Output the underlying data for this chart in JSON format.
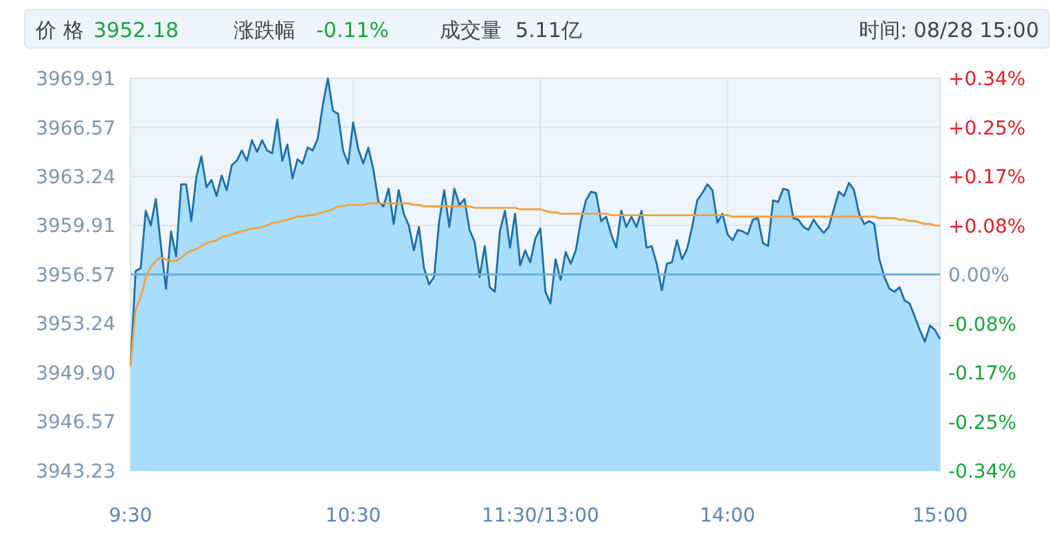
{
  "chart_data": {
    "type": "area",
    "annotations": [
      "价 格",
      "3952.18",
      "涨跌幅",
      "-0.11%",
      "成交量",
      "5.11亿",
      "时间: 08/28 15:00"
    ],
    "categories": [
      "9:30",
      null,
      null,
      null,
      null,
      null,
      null,
      null,
      null,
      null,
      null,
      null,
      null,
      null,
      null,
      null,
      null,
      null,
      null,
      null,
      null,
      null,
      null,
      null,
      null,
      null,
      null,
      null,
      null,
      null,
      null,
      null,
      null,
      null,
      null,
      null,
      null,
      null,
      null,
      null,
      null,
      null,
      null,
      null,
      "10:30",
      null,
      null,
      null,
      null,
      null,
      null,
      null,
      null,
      null,
      null,
      null,
      null,
      null,
      null,
      null,
      null,
      null,
      null,
      null,
      null,
      null,
      null,
      null,
      null,
      null,
      null,
      null,
      null,
      null,
      null,
      null,
      null,
      null,
      null,
      null,
      null,
      "11:30/13:00",
      null,
      null,
      null,
      null,
      null,
      null,
      null,
      null,
      null,
      null,
      null,
      null,
      null,
      null,
      null,
      null,
      null,
      null,
      null,
      null,
      null,
      null,
      null,
      null,
      null,
      null,
      null,
      null,
      null,
      null,
      null,
      null,
      null,
      null,
      null,
      null,
      "14:00",
      null,
      null,
      null,
      null,
      null,
      null,
      null,
      null,
      null,
      null,
      null,
      null,
      null,
      null,
      null,
      null,
      null,
      null,
      null,
      null,
      null,
      null,
      null,
      null,
      null,
      null,
      null,
      null,
      null,
      null,
      null,
      null,
      null,
      null,
      null,
      null,
      null,
      null,
      null,
      null,
      null,
      "15:00"
    ],
    "ylim": [
      3943.23,
      3969.91
    ],
    "yticks": [
      3943.23,
      3946.57,
      {
        "value": 3949.9,
        "label": "3949.90"
      },
      3953.24,
      3956.57,
      3959.91,
      3963.24,
      3966.57,
      3969.91
    ],
    "y2lim": [
      -0.34,
      0.34
    ],
    "y2ticks": [
      {
        "value": -0.34,
        "label": "-0.34%"
      },
      {
        "value": -0.255,
        "label": "-0.25%"
      },
      {
        "value": -0.17,
        "label": "-0.17%"
      },
      {
        "value": -0.085,
        "label": "-0.08%"
      },
      {
        "value": 0,
        "label": "0.00%"
      },
      {
        "value": 0.085,
        "label": "+0.08%"
      },
      {
        "value": 0.17,
        "label": "+0.17%"
      },
      {
        "value": 0.255,
        "label": "+0.25%"
      },
      {
        "value": 0.34,
        "label": "+0.34%"
      }
    ],
    "grid": true,
    "ref_lines": [
      {
        "axis": "y",
        "value": 3956.57,
        "color": "#6aaee0"
      }
    ],
    "series": [
      {
        "color": "#1f6ea6",
        "values": [
          3950.4,
          3956.8,
          3957.0,
          3960.9,
          3959.9,
          3961.7,
          3958.5,
          3955.6,
          3959.5,
          3957.8,
          3962.7,
          3962.7,
          3960.2,
          3963.2,
          3964.6,
          3962.5,
          3963.0,
          3961.9,
          3963.3,
          3962.3,
          3964.0,
          3964.3,
          3965.0,
          3964.3,
          3965.7,
          3964.9,
          3965.7,
          3965.0,
          3964.8,
          3967.1,
          3964.3,
          3965.4,
          3963.1,
          3964.4,
          3964.1,
          3965.2,
          3965.0,
          3965.8,
          3968.1,
          3969.9,
          3967.7,
          3967.5,
          3965.0,
          3964.1,
          3966.9,
          3965.1,
          3964.1,
          3965.2,
          3963.7,
          3961.5,
          3961.2,
          3962.4,
          3960.0,
          3962.3,
          3960.7,
          3959.9,
          3958.2,
          3959.8,
          3957.0,
          3955.9,
          3956.4,
          3960.2,
          3962.3,
          3959.8,
          3962.4,
          3961.3,
          3961.7,
          3959.6,
          3958.8,
          3956.4,
          3958.5,
          3955.7,
          3955.4,
          3959.5,
          3960.9,
          3958.4,
          3960.7,
          3957.2,
          3958.2,
          3957.4,
          3959.0,
          3959.7,
          3955.4,
          3954.6,
          3957.6,
          3956.2,
          3958.1,
          3957.3,
          3958.2,
          3960.2,
          3961.6,
          3962.2,
          3962.1,
          3960.2,
          3960.5,
          3959.3,
          3958.4,
          3960.9,
          3959.8,
          3960.5,
          3959.8,
          3960.9,
          3958.4,
          3958.5,
          3957.3,
          3955.5,
          3957.3,
          3957.4,
          3958.9,
          3957.6,
          3958.3,
          3959.8,
          3961.6,
          3962.1,
          3962.7,
          3962.3,
          3960.1,
          3960.7,
          3959.3,
          3958.9,
          3959.6,
          3959.5,
          3959.3,
          3960.3,
          3960.4,
          3958.7,
          3958.5,
          3961.6,
          3961.5,
          3962.4,
          3962.3,
          3960.4,
          3960.3,
          3959.8,
          3959.6,
          3960.3,
          3959.8,
          3959.4,
          3959.8,
          3961.0,
          3962.2,
          3961.9,
          3962.8,
          3962.3,
          3960.7,
          3960.0,
          3960.2,
          3960.0,
          3957.6,
          3956.4,
          3955.6,
          3955.4,
          3955.7,
          3954.8,
          3954.6,
          3953.7,
          3952.8,
          3952.0,
          3953.1,
          3952.8,
          3952.18
        ]
      },
      {
        "type": "line",
        "color": "#f0a040",
        "values": [
          3950.4,
          3954.2,
          3955.0,
          3956.4,
          3957.1,
          3957.5,
          3957.7,
          3957.6,
          3957.5,
          3957.5,
          3957.7,
          3958.0,
          3958.2,
          3958.3,
          3958.5,
          3958.7,
          3958.8,
          3958.9,
          3959.1,
          3959.2,
          3959.3,
          3959.4,
          3959.5,
          3959.6,
          3959.7,
          3959.7,
          3959.8,
          3959.9,
          3960.1,
          3960.1,
          3960.2,
          3960.3,
          3960.4,
          3960.5,
          3960.5,
          3960.6,
          3960.6,
          3960.7,
          3960.8,
          3960.9,
          3961.0,
          3961.2,
          3961.2,
          3961.3,
          3961.3,
          3961.3,
          3961.3,
          3961.4,
          3961.4,
          3961.4,
          3961.4,
          3961.4,
          3961.4,
          3961.4,
          3961.4,
          3961.4,
          3961.3,
          3961.3,
          3961.2,
          3961.2,
          3961.2,
          3961.2,
          3961.2,
          3961.2,
          3961.2,
          3961.2,
          3961.2,
          3961.2,
          3961.1,
          3961.1,
          3961.1,
          3961.1,
          3961.1,
          3961.1,
          3961.1,
          3961.1,
          3961.1,
          3961.0,
          3961.0,
          3961.0,
          3961.0,
          3961.0,
          3960.9,
          3960.8,
          3960.8,
          3960.7,
          3960.7,
          3960.7,
          3960.7,
          3960.7,
          3960.7,
          3960.7,
          3960.7,
          3960.7,
          3960.7,
          3960.6,
          3960.6,
          3960.6,
          3960.6,
          3960.6,
          3960.6,
          3960.6,
          3960.6,
          3960.6,
          3960.6,
          3960.6,
          3960.6,
          3960.6,
          3960.6,
          3960.6,
          3960.6,
          3960.6,
          3960.6,
          3960.6,
          3960.6,
          3960.6,
          3960.6,
          3960.6,
          3960.6,
          3960.5,
          3960.5,
          3960.5,
          3960.5,
          3960.5,
          3960.5,
          3960.5,
          3960.5,
          3960.5,
          3960.5,
          3960.5,
          3960.5,
          3960.5,
          3960.5,
          3960.5,
          3960.5,
          3960.5,
          3960.5,
          3960.5,
          3960.5,
          3960.5,
          3960.5,
          3960.5,
          3960.5,
          3960.5,
          3960.5,
          3960.5,
          3960.5,
          3960.5,
          3960.4,
          3960.4,
          3960.4,
          3960.4,
          3960.3,
          3960.3,
          3960.2,
          3960.2,
          3960.1,
          3960.0,
          3960.0,
          3959.9,
          3959.9
        ]
      }
    ]
  }
}
